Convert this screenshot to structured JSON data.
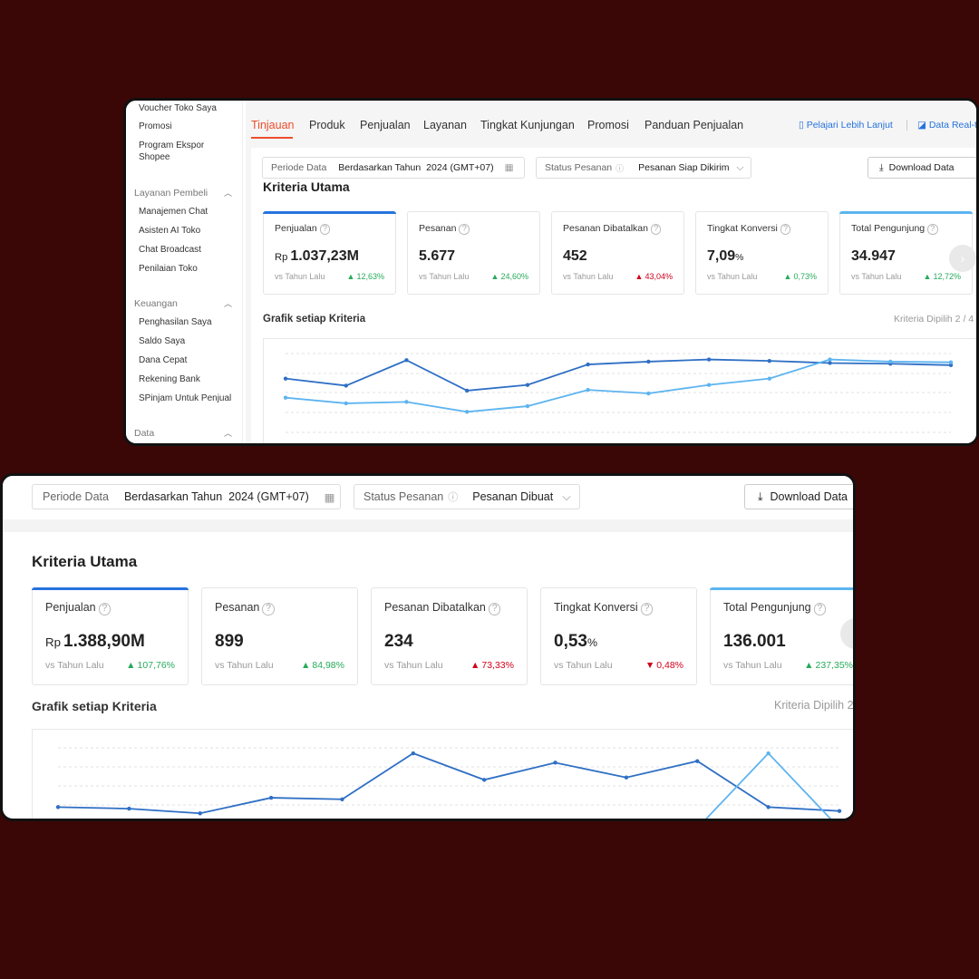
{
  "shot1": {
    "sidebar": {
      "links_top": [
        "Voucher Toko Saya",
        "Promosi",
        "Program Ekspor Shopee"
      ],
      "group_layanan": {
        "title": "Layanan Pembeli",
        "items": [
          "Manajemen Chat",
          "Asisten AI Toko",
          "Chat Broadcast",
          "Penilaian Toko"
        ]
      },
      "group_keuangan": {
        "title": "Keuangan",
        "items": [
          "Penghasilan Saya",
          "Saldo Saya",
          "Dana Cepat",
          "Rekening Bank",
          "SPinjam Untuk Penjual"
        ]
      },
      "group_data": {
        "title": "Data"
      }
    },
    "tabs": [
      "Tinjauan",
      "Produk",
      "Penjualan",
      "Layanan",
      "Tingkat Kunjungan",
      "Promosi",
      "Panduan Penjualan"
    ],
    "links": {
      "learn": "Pelajari Lebih Lanjut",
      "realtime": "Data Real-t"
    },
    "filters": {
      "period_label": "Periode Data",
      "period_value": "Berdasarkan Tahun",
      "period_tz": "2024 (GMT+07)",
      "status_label": "Status Pesanan",
      "status_value": "Pesanan Siap Dikirim",
      "download": "Download Data"
    },
    "section_title": "Kriteria Utama",
    "vs_label": "vs Tahun Lalu",
    "cards": [
      {
        "title": "Penjualan",
        "currency": "Rp",
        "value": "1.037,23M",
        "unit": "",
        "change": "12,63%",
        "dir": "up",
        "accent": "#2673dd"
      },
      {
        "title": "Pesanan",
        "currency": "",
        "value": "5.677",
        "unit": "",
        "change": "24,60%",
        "dir": "up",
        "accent": ""
      },
      {
        "title": "Pesanan Dibatalkan",
        "currency": "",
        "value": "452",
        "unit": "",
        "change": "43,04%",
        "dir": "up-bad",
        "accent": ""
      },
      {
        "title": "Tingkat Konversi",
        "currency": "",
        "value": "7,09",
        "unit": "%",
        "change": "0,73%",
        "dir": "up",
        "accent": ""
      },
      {
        "title": "Total Pengunjung",
        "currency": "",
        "value": "34.947",
        "unit": "",
        "change": "12,72%",
        "dir": "up",
        "accent": "#5db4f0"
      }
    ],
    "chart_title": "Grafik setiap Kriteria",
    "chart_note": "Kriteria Dipilih 2 / 4",
    "colors": {
      "accent": "#ee4d2d",
      "series1": "#2f6fc4",
      "series2": "#5db4f0"
    }
  },
  "shot2": {
    "filters": {
      "period_label": "Periode Data",
      "period_value": "Berdasarkan Tahun",
      "period_tz": "2024 (GMT+07)",
      "status_label": "Status Pesanan",
      "status_value": "Pesanan Dibuat",
      "download": "Download Data"
    },
    "section_title": "Kriteria Utama",
    "vs_label": "vs Tahun Lalu",
    "cards": [
      {
        "title": "Penjualan",
        "currency": "Rp",
        "value": "1.388,90M",
        "unit": "",
        "change": "107,76%",
        "dir": "up",
        "accent": "#2673dd"
      },
      {
        "title": "Pesanan",
        "currency": "",
        "value": "899",
        "unit": "",
        "change": "84,98%",
        "dir": "up",
        "accent": ""
      },
      {
        "title": "Pesanan Dibatalkan",
        "currency": "",
        "value": "234",
        "unit": "",
        "change": "73,33%",
        "dir": "up-bad",
        "accent": ""
      },
      {
        "title": "Tingkat Konversi",
        "currency": "",
        "value": "0,53",
        "unit": "%",
        "change": "0,48%",
        "dir": "down",
        "accent": ""
      },
      {
        "title": "Total Pengunjung",
        "currency": "",
        "value": "136.001",
        "unit": "",
        "change": "237,35%",
        "dir": "up",
        "accent": "#5db4f0"
      }
    ],
    "chart_title": "Grafik setiap Kriteria",
    "chart_note": "Kriteria Dipilih 2"
  },
  "chart_data": [
    {
      "type": "line",
      "x": [
        1,
        2,
        3,
        4,
        5,
        6,
        7,
        8,
        9,
        10,
        11,
        12
      ],
      "series": [
        {
          "values": [
            0.62,
            0.52,
            0.88,
            0.45,
            0.53,
            0.82,
            0.86,
            0.89,
            0.87,
            0.84,
            0.83,
            0.81
          ]
        },
        {
          "values": [
            0.35,
            0.27,
            0.29,
            0.15,
            0.23,
            0.46,
            0.41,
            0.53,
            0.62,
            0.89,
            0.86,
            0.85
          ]
        }
      ],
      "ylim": [
        0,
        1
      ],
      "grid": true
    },
    {
      "type": "line",
      "x": [
        1,
        2,
        3,
        4,
        5,
        6,
        7,
        8,
        9,
        10,
        11,
        12
      ],
      "series": [
        {
          "values": [
            0.17,
            0.15,
            0.09,
            0.29,
            0.27,
            0.86,
            0.52,
            0.74,
            0.55,
            0.76,
            0.17,
            0.12
          ]
        },
        {
          "values": [
            null,
            null,
            null,
            null,
            null,
            null,
            null,
            null,
            null,
            -0.1,
            0.86,
            -0.1
          ]
        }
      ],
      "ylim": [
        0,
        1
      ],
      "grid": true
    }
  ]
}
